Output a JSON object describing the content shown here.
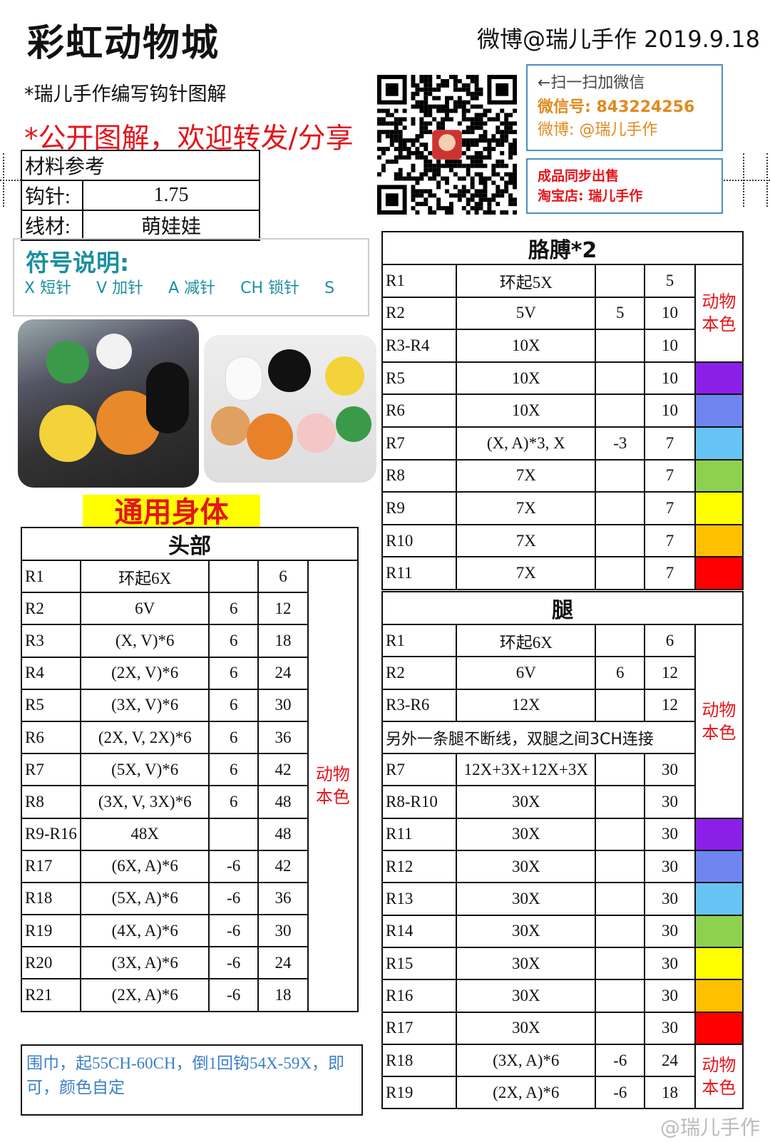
{
  "header": {
    "title": "彩虹动物城",
    "author_date": "微博@瑞儿手作  2019.9.18"
  },
  "subtitle": "*瑞儿手作编写钩针图解",
  "notice": "*公开图解，欢迎转发/分享",
  "materials": {
    "title": "材料参考",
    "rows": [
      {
        "label": "钩针:",
        "value": "1.75"
      },
      {
        "label": "线材:",
        "value": "萌娃娃"
      }
    ]
  },
  "symbols": {
    "title": "符号说明:",
    "items": [
      "X 短针",
      "V 加针",
      "A 减针",
      "CH 锁针",
      "S"
    ]
  },
  "contact": {
    "scan": "←扫一扫加微信",
    "wechat_label": "微信号:",
    "wechat_id": "843224256",
    "weibo": "微博: @瑞儿手作"
  },
  "shop": {
    "line1": "成品同步出售",
    "line2": "淘宝店: 瑞儿手作"
  },
  "banner": "通用身体",
  "colors": {
    "purple": "#8B1FE8",
    "blue": "#6E85F0",
    "lightblue": "#66C4F5",
    "green": "#8ED150",
    "yellow": "#FFFF00",
    "orange": "#FFC000",
    "red": "#FF0000",
    "accent_red": "#E5141B",
    "teal": "#1A8FA0"
  },
  "head": {
    "title": "头部",
    "rows": [
      [
        "R1",
        "环起6X",
        "",
        "6"
      ],
      [
        "R2",
        "6V",
        "6",
        "12"
      ],
      [
        "R3",
        "(X, V)*6",
        "6",
        "18"
      ],
      [
        "R4",
        "(2X, V)*6",
        "6",
        "24"
      ],
      [
        "R5",
        "(3X, V)*6",
        "6",
        "30"
      ],
      [
        "R6",
        "(2X, V, 2X)*6",
        "6",
        "36"
      ],
      [
        "R7",
        "(5X, V)*6",
        "6",
        "42"
      ],
      [
        "R8",
        "(3X, V, 3X)*6",
        "6",
        "48"
      ],
      [
        "R9-R16",
        "48X",
        "",
        "48"
      ],
      [
        "R17",
        "(6X, A)*6",
        "-6",
        "42"
      ],
      [
        "R18",
        "(5X, A)*6",
        "-6",
        "36"
      ],
      [
        "R19",
        "(4X, A)*6",
        "-6",
        "30"
      ],
      [
        "R20",
        "(3X, A)*6",
        "-6",
        "24"
      ],
      [
        "R21",
        "(2X, A)*6",
        "-6",
        "18"
      ]
    ],
    "color_col": [
      {
        "text": "动物本色",
        "rows": 14
      }
    ]
  },
  "scarf_note": "围巾，起55CH-60CH，倒1回钩54X-59X，即可，颜色自定",
  "arms": {
    "title": "胳膊*2",
    "rows": [
      [
        "R1",
        "环起5X",
        "",
        "5"
      ],
      [
        "R2",
        "5V",
        "5",
        "10"
      ],
      [
        "R3-R4",
        "10X",
        "",
        "10"
      ],
      [
        "R5",
        "10X",
        "",
        "10"
      ],
      [
        "R6",
        "10X",
        "",
        "10"
      ],
      [
        "R7",
        "(X, A)*3, X",
        "-3",
        "7"
      ],
      [
        "R8",
        "7X",
        "",
        "7"
      ],
      [
        "R9",
        "7X",
        "",
        "7"
      ],
      [
        "R10",
        "7X",
        "",
        "7"
      ],
      [
        "R11",
        "7X",
        "",
        "7"
      ]
    ],
    "color_col": [
      {
        "text": "动物本色",
        "rows": 3
      },
      {
        "color": "#8B1FE8"
      },
      {
        "color": "#6E85F0"
      },
      {
        "color": "#66C4F5"
      },
      {
        "color": "#8ED150"
      },
      {
        "color": "#FFFF00"
      },
      {
        "color": "#FFC000"
      },
      {
        "color": "#FF0000"
      }
    ]
  },
  "legs": {
    "title": "腿",
    "rows": [
      [
        "R1",
        "环起6X",
        "",
        "6"
      ],
      [
        "R2",
        "6V",
        "6",
        "12"
      ],
      [
        "R3-R6",
        "12X",
        "",
        "12"
      ],
      {
        "note": "另外一条腿不断线，双腿之间3CH连接"
      },
      [
        "R7",
        "12X+3X+12X+3X",
        "",
        "30"
      ],
      [
        "R8-R10",
        "30X",
        "",
        "30"
      ],
      [
        "R11",
        "30X",
        "",
        "30"
      ],
      [
        "R12",
        "30X",
        "",
        "30"
      ],
      [
        "R13",
        "30X",
        "",
        "30"
      ],
      [
        "R14",
        "30X",
        "",
        "30"
      ],
      [
        "R15",
        "30X",
        "",
        "30"
      ],
      [
        "R16",
        "30X",
        "",
        "30"
      ],
      [
        "R17",
        "30X",
        "",
        "30"
      ],
      [
        "R18",
        "(3X, A)*6",
        "-6",
        "24"
      ],
      [
        "R19",
        "(2X, A)*6",
        "-6",
        "18"
      ]
    ],
    "color_col": [
      {
        "text": "动物本色",
        "rows": 6
      },
      {
        "color": "#8B1FE8"
      },
      {
        "color": "#6E85F0"
      },
      {
        "color": "#66C4F5"
      },
      {
        "color": "#8ED150"
      },
      {
        "color": "#FFFF00"
      },
      {
        "color": "#FFC000"
      },
      {
        "color": "#FF0000"
      },
      {
        "text": "动物本色",
        "rows": 2
      }
    ]
  },
  "watermark": "@瑞儿手作"
}
